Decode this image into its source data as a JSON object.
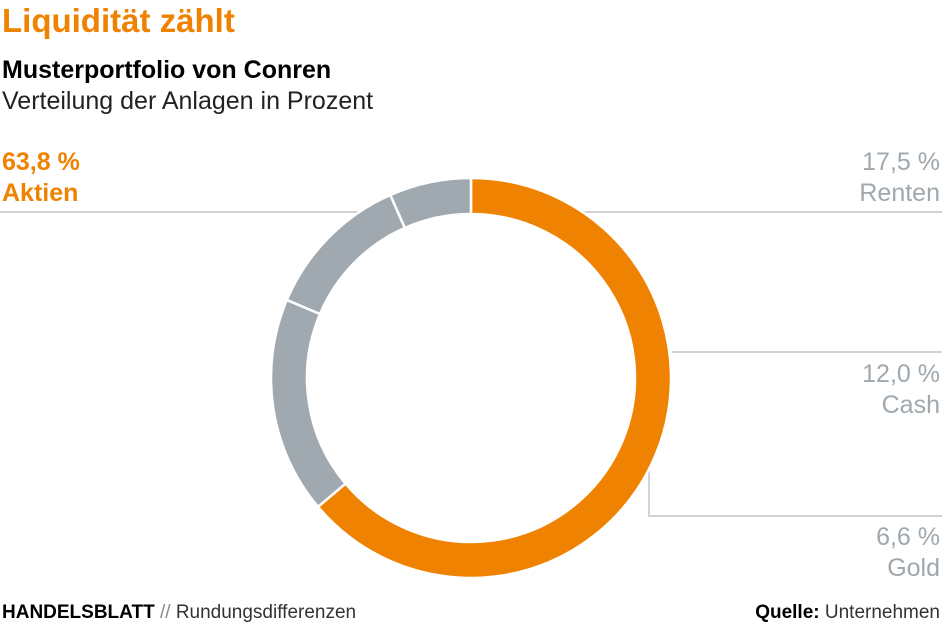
{
  "header": {
    "kicker": "Liquidität zählt",
    "title": "Musterportfolio von Conren",
    "subtitle": "Verteilung der Anlagen in Prozent"
  },
  "chart_data": {
    "type": "pie",
    "donut": true,
    "slices": [
      {
        "label": "Aktien",
        "value": 63.8,
        "value_label": "63,8 %",
        "color": "#ef8200"
      },
      {
        "label": "Renten",
        "value": 17.5,
        "value_label": "17,5 %",
        "color": "#a0a9af"
      },
      {
        "label": "Cash",
        "value": 12.0,
        "value_label": "12,0 %",
        "color": "#a0a9af"
      },
      {
        "label": "Gold",
        "value": 6.6,
        "value_label": "6,6 %",
        "color": "#a0a9af"
      }
    ],
    "colors": {
      "highlight": "#ef8200",
      "other": "#a0a9af",
      "leader_line": "#d0d4d7",
      "label_muted": "#9fa8ae"
    }
  },
  "footer": {
    "brand": "HANDELSBLATT",
    "separator": "//",
    "note": "Rundungsdifferenzen",
    "source_label": "Quelle:",
    "source": "Unternehmen"
  }
}
